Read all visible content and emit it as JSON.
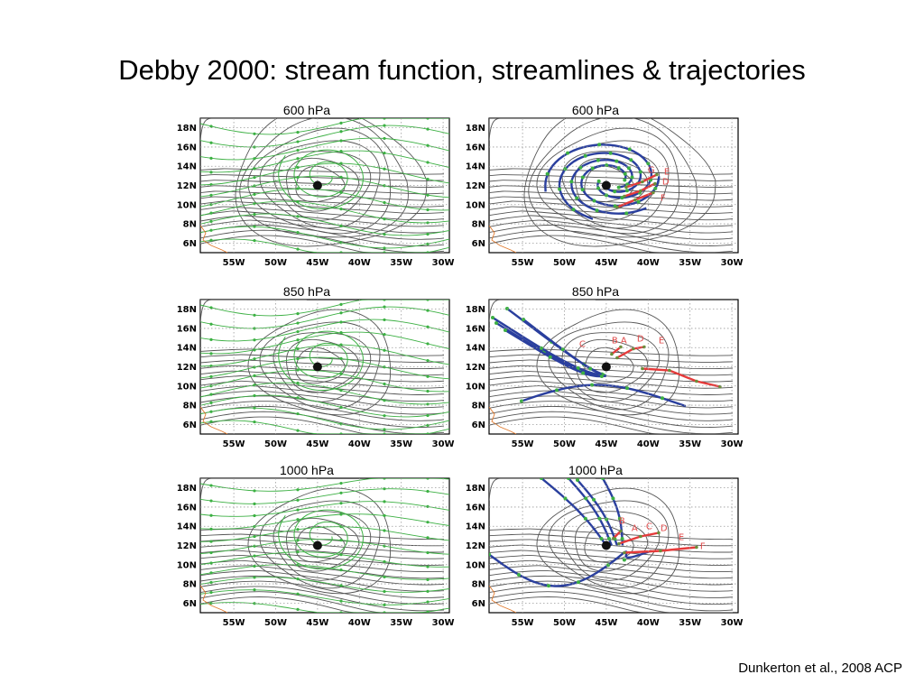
{
  "title": "Debby 2000: stream function, streamlines & trajectories",
  "citation": "Dunkerton et al., 2008 ACP",
  "x_ticks": [
    "55W",
    "50W",
    "45W",
    "40W",
    "35W",
    "30W"
  ],
  "y_ticks": [
    "18N",
    "16N",
    "14N",
    "12N",
    "10N",
    "8N",
    "6N"
  ],
  "panels": [
    {
      "level": "600 hPa",
      "type": "streamlines"
    },
    {
      "level": "600 hPa",
      "type": "trajectories",
      "labels": [
        "G",
        "E",
        "D",
        "F"
      ]
    },
    {
      "level": "850 hPa",
      "type": "streamlines"
    },
    {
      "level": "850 hPa",
      "type": "trajectories",
      "labels": [
        "C",
        "B",
        "A",
        "D",
        "E"
      ]
    },
    {
      "level": "1000 hPa",
      "type": "streamlines"
    },
    {
      "level": "1000 hPa",
      "type": "trajectories",
      "labels": [
        "B",
        "A",
        "C",
        "D",
        "E",
        "F"
      ]
    }
  ],
  "center_marker": {
    "lon_w": 45,
    "lat_n": 12
  },
  "colors": {
    "contour": "#555555",
    "streamline": "#3cb043",
    "trajectory_blue": "#2a3f9e",
    "trajectory_red": "#e53b3b",
    "coast": "#e07a2e",
    "label_red": "#e04848"
  }
}
